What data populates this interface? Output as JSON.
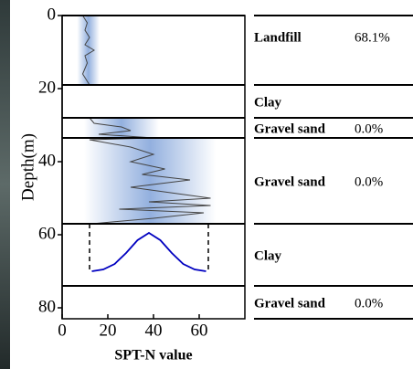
{
  "chart_data": {
    "type": "profile",
    "xlabel": "SPT-N value",
    "ylabel": "Depth(m)",
    "xlim": [
      0,
      80
    ],
    "ylim": [
      0,
      83
    ],
    "xticks": [
      0,
      20,
      40,
      60
    ],
    "yticks": [
      0,
      20,
      40,
      60,
      80
    ],
    "line_color": "#444444",
    "curve_color": "#0000c0",
    "layers": [
      {
        "name": "Landfill",
        "percent": "68.1%",
        "top": 0,
        "bottom": 19,
        "x": [
          9,
          11,
          10,
          12,
          10,
          14,
          10,
          11,
          9,
          12
        ],
        "y": [
          0,
          2,
          4,
          6,
          8,
          9.5,
          11,
          13,
          16,
          19
        ]
      },
      {
        "name": "Clay",
        "top": 19,
        "bottom": 28
      },
      {
        "name": "Gravel sand",
        "percent": "0.0%",
        "top": 28,
        "bottom": 33.5,
        "x": [
          12,
          14,
          26,
          30,
          16,
          40
        ],
        "y": [
          28,
          29.5,
          30.5,
          31.5,
          32.5,
          33.5
        ]
      },
      {
        "name": "Gravel sand",
        "percent": "0.0%",
        "top": 33.5,
        "bottom": 57,
        "x": [
          40,
          12,
          30,
          40,
          30,
          45,
          35,
          56,
          30,
          65,
          38,
          65,
          25,
          62,
          40,
          13
        ],
        "y": [
          33.5,
          34,
          36,
          38,
          40,
          42,
          43.5,
          45,
          47,
          50,
          51,
          52,
          53,
          54,
          55.5,
          57
        ]
      },
      {
        "name": "Clay",
        "top": 57,
        "bottom": 74,
        "dashed_bounds": [
          12,
          64
        ],
        "x": [
          13,
          18,
          23,
          28,
          33,
          38,
          43,
          48,
          53,
          58,
          63
        ],
        "y": [
          70,
          69.5,
          68,
          65,
          61.5,
          59.5,
          61.5,
          65,
          68,
          69.5,
          70
        ]
      },
      {
        "name": "Gravel sand",
        "percent": "0.0%",
        "top": 74,
        "bottom": 83
      }
    ]
  }
}
